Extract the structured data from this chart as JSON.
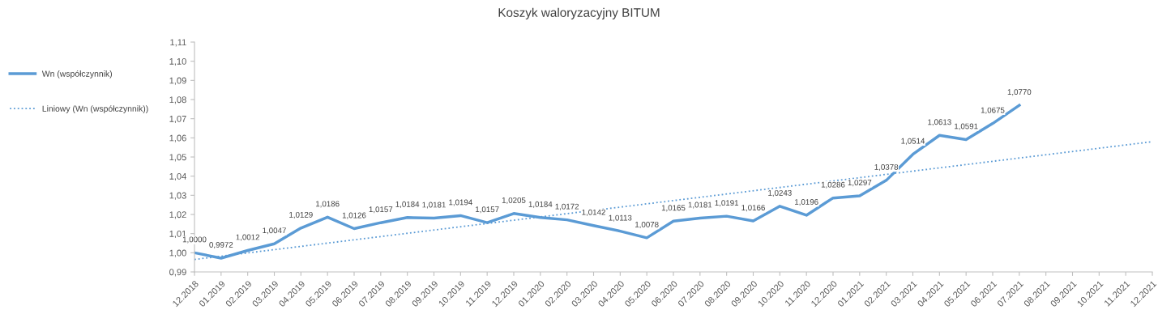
{
  "chart_data": {
    "type": "line",
    "title": "Koszyk waloryzacyjny BITUM",
    "categories": [
      "12.2018",
      "01.2019",
      "02.2019",
      "03.2019",
      "04.2019",
      "05.2019",
      "06.2019",
      "07.2019",
      "08.2019",
      "09.2019",
      "10.2019",
      "11.2019",
      "12.2019",
      "01.2020",
      "02.2020",
      "03.2020",
      "04.2020",
      "05.2020",
      "06.2020",
      "07.2020",
      "08.2020",
      "09.2020",
      "10.2020",
      "11.2020",
      "12.2020",
      "01.2021",
      "02.2021",
      "03.2021",
      "04.2021",
      "05.2021",
      "06.2021",
      "07.2021",
      "08.2021",
      "09.2021",
      "10.2021",
      "11.2021",
      "12.2021"
    ],
    "series": [
      {
        "name": "Wn (współczynnik)",
        "color": "#5b9bd5",
        "line_style": "solid",
        "values": [
          1.0,
          0.9972,
          1.0012,
          1.0047,
          1.0129,
          1.0186,
          1.0126,
          1.0157,
          1.0184,
          1.0181,
          1.0194,
          1.0157,
          1.0205,
          1.0184,
          1.0172,
          1.0142,
          1.0113,
          1.0078,
          1.0165,
          1.0181,
          1.0191,
          1.0166,
          1.0243,
          1.0196,
          1.0286,
          1.0297,
          1.0378,
          1.0514,
          1.0613,
          1.0591,
          1.0675,
          1.077,
          null,
          null,
          null,
          null,
          null
        ],
        "value_labels": [
          "1,0000",
          "0,9972",
          "1,0012",
          "1,0047",
          "1,0129",
          "1,0186",
          "1,0126",
          "1,0157",
          "1,0184",
          "1,0181",
          "1,0194",
          "1,0157",
          "1,0205",
          "1,0184",
          "1,0172",
          "1,0142",
          "1,0113",
          "1,0078",
          "1,0165",
          "1,0181",
          "1,0191",
          "1,0166",
          "1,0243",
          "1,0196",
          "1,0286",
          "1,0297",
          "1,0378",
          "1,0514",
          "1,0613",
          "1,0591",
          "1,0675",
          "1,0770",
          null,
          null,
          null,
          null,
          null
        ]
      },
      {
        "name": "Liniowy (Wn (współczynnik))",
        "color": "#5b9bd5",
        "line_style": "dotted",
        "x": [
          "12.2018",
          "12.2021"
        ],
        "values": [
          0.9965,
          1.058
        ]
      }
    ],
    "ylim": [
      0.99,
      1.11
    ],
    "yticks": [
      {
        "value": 0.99,
        "label": "0,99"
      },
      {
        "value": 1.0,
        "label": "1,00"
      },
      {
        "value": 1.01,
        "label": "1,01"
      },
      {
        "value": 1.02,
        "label": "1,02"
      },
      {
        "value": 1.03,
        "label": "1,03"
      },
      {
        "value": 1.04,
        "label": "1,04"
      },
      {
        "value": 1.05,
        "label": "1,05"
      },
      {
        "value": 1.06,
        "label": "1,06"
      },
      {
        "value": 1.07,
        "label": "1,07"
      },
      {
        "value": 1.08,
        "label": "1,08"
      },
      {
        "value": 1.09,
        "label": "1,09"
      },
      {
        "value": 1.1,
        "label": "1,10"
      },
      {
        "value": 1.11,
        "label": "1,11"
      }
    ],
    "legend": "left",
    "grid": false,
    "marker": "none"
  }
}
